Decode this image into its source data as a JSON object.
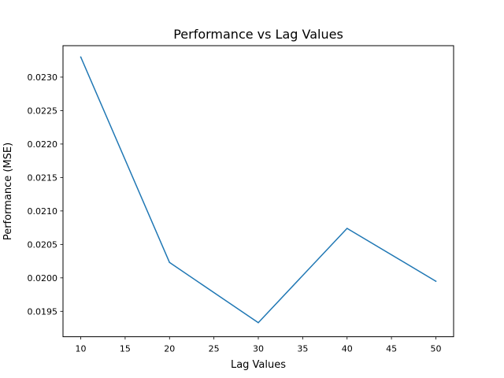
{
  "chart_data": {
    "type": "line",
    "title": "Performance vs Lag Values",
    "xlabel": "Lag Values",
    "ylabel": "Performance (MSE)",
    "xlim": [
      8,
      52
    ],
    "ylim": [
      0.01912,
      0.02347
    ],
    "x_ticks": [
      10,
      15,
      20,
      25,
      30,
      35,
      40,
      45,
      50
    ],
    "x_tick_labels": [
      "10",
      "15",
      "20",
      "25",
      "30",
      "35",
      "40",
      "45",
      "50"
    ],
    "y_ticks": [
      0.0195,
      0.02,
      0.0205,
      0.021,
      0.0215,
      0.022,
      0.0225,
      0.023
    ],
    "y_tick_labels": [
      "0.0195",
      "0.0200",
      "0.0205",
      "0.0210",
      "0.0215",
      "0.0220",
      "0.0225",
      "0.0230"
    ],
    "grid": false,
    "series": [
      {
        "color": "#1f77b4",
        "x": [
          10,
          20,
          30,
          40,
          50
        ],
        "y": [
          0.0233,
          0.02023,
          0.01933,
          0.02074,
          0.01995
        ]
      }
    ]
  }
}
